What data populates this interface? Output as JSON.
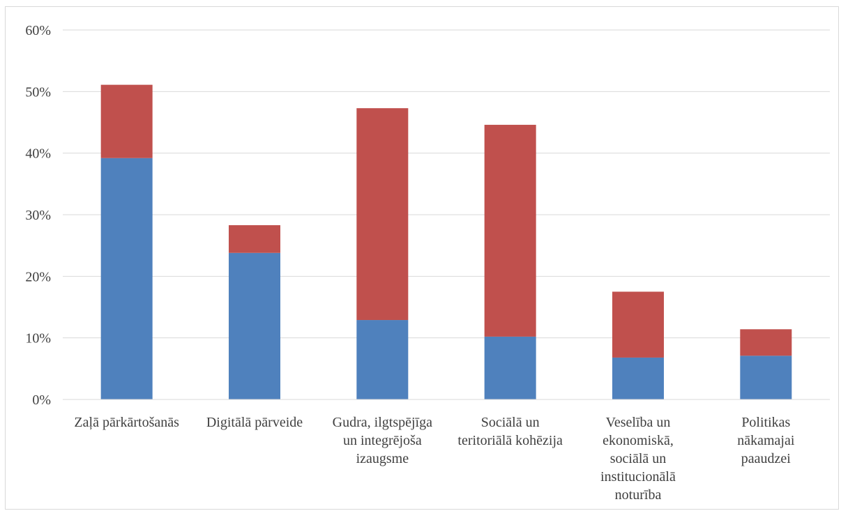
{
  "chart_data": {
    "type": "bar",
    "stacked": true,
    "title": "",
    "xlabel": "",
    "ylabel": "",
    "ylim": [
      0,
      0.6
    ],
    "y_ticks": [
      0,
      0.1,
      0.2,
      0.3,
      0.4,
      0.5,
      0.6
    ],
    "y_tick_labels": [
      "0%",
      "10%",
      "20%",
      "30%",
      "40%",
      "50%",
      "60%"
    ],
    "grid": true,
    "legend": "none",
    "categories": [
      [
        "Zaļā pārkārtošanās"
      ],
      [
        "Digitālā pārveide"
      ],
      [
        "Gudra, ilgtspējīga",
        "un integrējoša",
        "izaugsme"
      ],
      [
        "Sociālā un",
        "teritoriālā kohēzija"
      ],
      [
        "Veselība un",
        "ekonomiskā,",
        "sociālā un",
        "institucionālā",
        "noturība"
      ],
      [
        "Politikas",
        "nākamajai",
        "paaudzei"
      ]
    ],
    "series": [
      {
        "color": "#4f81bd",
        "values": [
          0.392,
          0.238,
          0.129,
          0.102,
          0.068,
          0.071
        ]
      },
      {
        "color": "#c0504d",
        "values": [
          0.119,
          0.045,
          0.344,
          0.344,
          0.107,
          0.043
        ]
      }
    ]
  }
}
